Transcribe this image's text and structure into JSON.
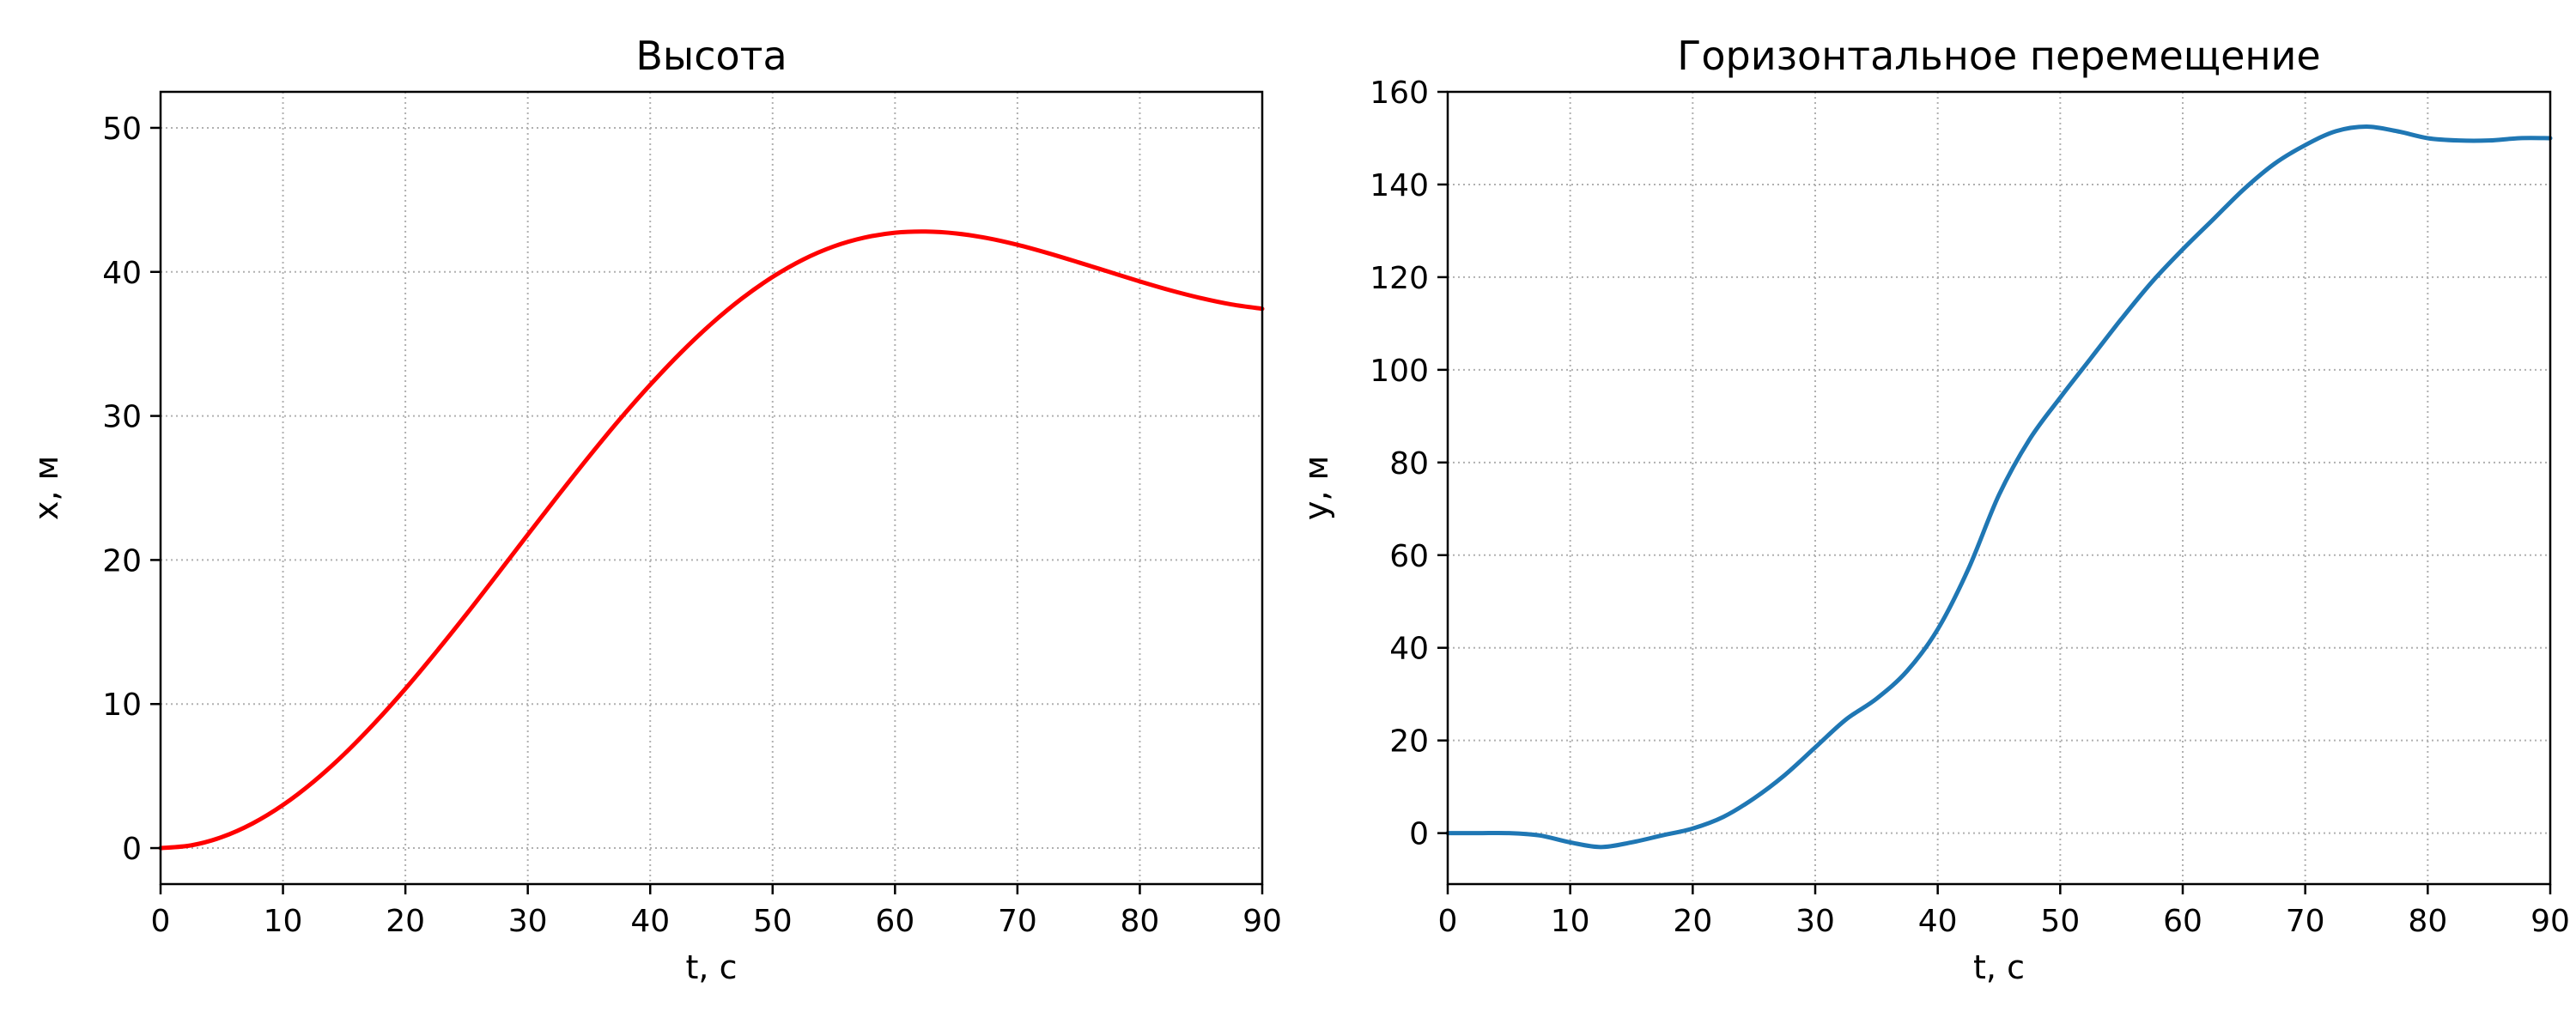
{
  "colors": {
    "series_left": "#ff0000",
    "series_right": "#1f77b4",
    "grid": "#b0b0b0",
    "axes": "#000000",
    "background": "#ffffff"
  },
  "chart_data": [
    {
      "type": "line",
      "title": "Высота",
      "xlabel": "t, с",
      "ylabel": "x, м",
      "xlim": [
        0,
        90
      ],
      "ylim": [
        -2.5,
        52.5
      ],
      "xticks": [
        0,
        10,
        20,
        30,
        40,
        50,
        60,
        70,
        80,
        90
      ],
      "yticks": [
        0,
        10,
        20,
        30,
        40,
        50
      ],
      "grid": true,
      "grid_style": "dotted",
      "series": [
        {
          "color": "#ff0000",
          "x": [
            0,
            2.5,
            5,
            7.5,
            10,
            12.5,
            15,
            17.5,
            20,
            22.5,
            25,
            27.5,
            30,
            32.5,
            35,
            37.5,
            40,
            42.5,
            45,
            47.5,
            50,
            52.5,
            55,
            57.5,
            60,
            62.5,
            65,
            67.5,
            70,
            72.5,
            75,
            77.5,
            80,
            82.5,
            85,
            87.5,
            90
          ],
          "y": [
            0,
            0.19,
            0.76,
            1.7,
            2.99,
            4.61,
            6.52,
            8.69,
            11.06,
            13.6,
            16.25,
            18.99,
            21.76,
            24.5,
            27.18,
            29.75,
            32.16,
            34.39,
            36.4,
            38.16,
            39.65,
            40.86,
            41.77,
            42.38,
            42.72,
            42.8,
            42.67,
            42.35,
            41.88,
            41.3,
            40.66,
            40.0,
            39.34,
            38.72,
            38.18,
            37.74,
            37.44
          ]
        }
      ]
    },
    {
      "type": "line",
      "title": "Горизонтальное перемещение",
      "xlabel": "t, с",
      "ylabel": "y, м",
      "xlim": [
        0,
        90
      ],
      "ylim": [
        -11,
        160
      ],
      "xticks": [
        0,
        10,
        20,
        30,
        40,
        50,
        60,
        70,
        80,
        90
      ],
      "yticks": [
        0,
        20,
        40,
        60,
        80,
        100,
        120,
        140,
        160
      ],
      "grid": true,
      "grid_style": "dotted",
      "series": [
        {
          "color": "#1f77b4",
          "x": [
            0,
            2.5,
            5,
            7.5,
            10,
            12.5,
            15,
            17.5,
            20,
            22.5,
            25,
            27.5,
            30,
            32.5,
            35,
            37.5,
            40,
            42.5,
            45,
            47.5,
            50,
            52.5,
            55,
            57.5,
            60,
            62.5,
            65,
            67.5,
            70,
            72.5,
            75,
            77.5,
            80,
            82.5,
            85,
            87.5,
            90
          ],
          "y": [
            0,
            0,
            0,
            -0.5,
            -2,
            -3,
            -2,
            -0.5,
            1,
            3.5,
            7.5,
            12.5,
            18.5,
            24.5,
            29,
            35,
            44,
            57,
            73,
            85,
            94,
            102.5,
            111,
            119,
            126,
            132.5,
            139,
            144.5,
            148.5,
            151.5,
            152.5,
            151.5,
            150,
            149.5,
            149.5,
            150,
            150
          ]
        }
      ]
    }
  ]
}
